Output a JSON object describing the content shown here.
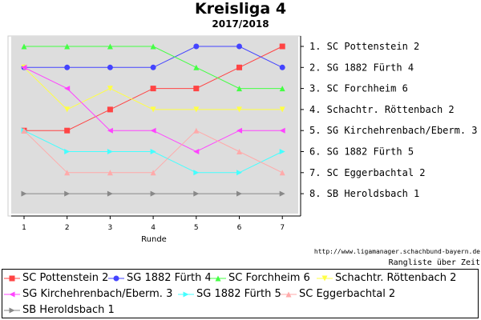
{
  "chart_data": {
    "type": "line",
    "title": "Kreisliga 4",
    "subtitle": "2017/2018",
    "xlabel": "Runde",
    "x": [
      1,
      2,
      3,
      4,
      5,
      6,
      7
    ],
    "ylim": [
      1,
      8
    ],
    "y_inverted": true,
    "grid": false,
    "legend_position": "bottom",
    "right_labels": [
      "1. SC Pottenstein 2",
      "2. SG 1882 Fürth 4",
      "3. SC Forchheim 6",
      "4. Schachtr. Röttenbach 2",
      "5. SG Kirchehrenbach/Eberm. 3",
      "6. SG 1882 Fürth 5",
      "7. SC Eggerbachtal 2",
      "8. SB Heroldsbach 1"
    ],
    "series": [
      {
        "name": "SC Pottenstein 2",
        "color": "#ff4444",
        "marker": "square",
        "values": [
          5,
          5,
          4,
          3,
          3,
          2,
          1
        ]
      },
      {
        "name": "SG 1882 Fürth 4",
        "color": "#4444ff",
        "marker": "circle",
        "values": [
          2,
          2,
          2,
          2,
          1,
          1,
          2
        ]
      },
      {
        "name": "SC Forchheim 6",
        "color": "#44ff44",
        "marker": "triangle-up",
        "values": [
          1,
          1,
          1,
          1,
          2,
          3,
          3
        ]
      },
      {
        "name": "Schachtr. Röttenbach 2",
        "color": "#ffff44",
        "marker": "triangle-down",
        "values": [
          2,
          4,
          3,
          4,
          4,
          4,
          4
        ]
      },
      {
        "name": "SG Kirchehrenbach/Eberm. 3",
        "color": "#ff44ff",
        "marker": "triangle-left",
        "values": [
          2,
          3,
          5,
          5,
          6,
          5,
          5
        ]
      },
      {
        "name": "SG 1882 Fürth 5",
        "color": "#44ffff",
        "marker": "triangle-right",
        "values": [
          5,
          6,
          6,
          6,
          7,
          7,
          6
        ]
      },
      {
        "name": "SC Eggerbachtal 2",
        "color": "#ffaaaa",
        "marker": "triangle-up",
        "values": [
          5,
          7,
          7,
          7,
          5,
          6,
          7
        ]
      },
      {
        "name": "SB Heroldsbach 1",
        "color": "#888888",
        "marker": "triangle-right",
        "values": [
          8,
          8,
          8,
          8,
          8,
          8,
          8
        ]
      }
    ]
  },
  "source_url": "http://www.ligamanager.schachbund-bayern.de",
  "footnote": "Rangliste über Zeit"
}
